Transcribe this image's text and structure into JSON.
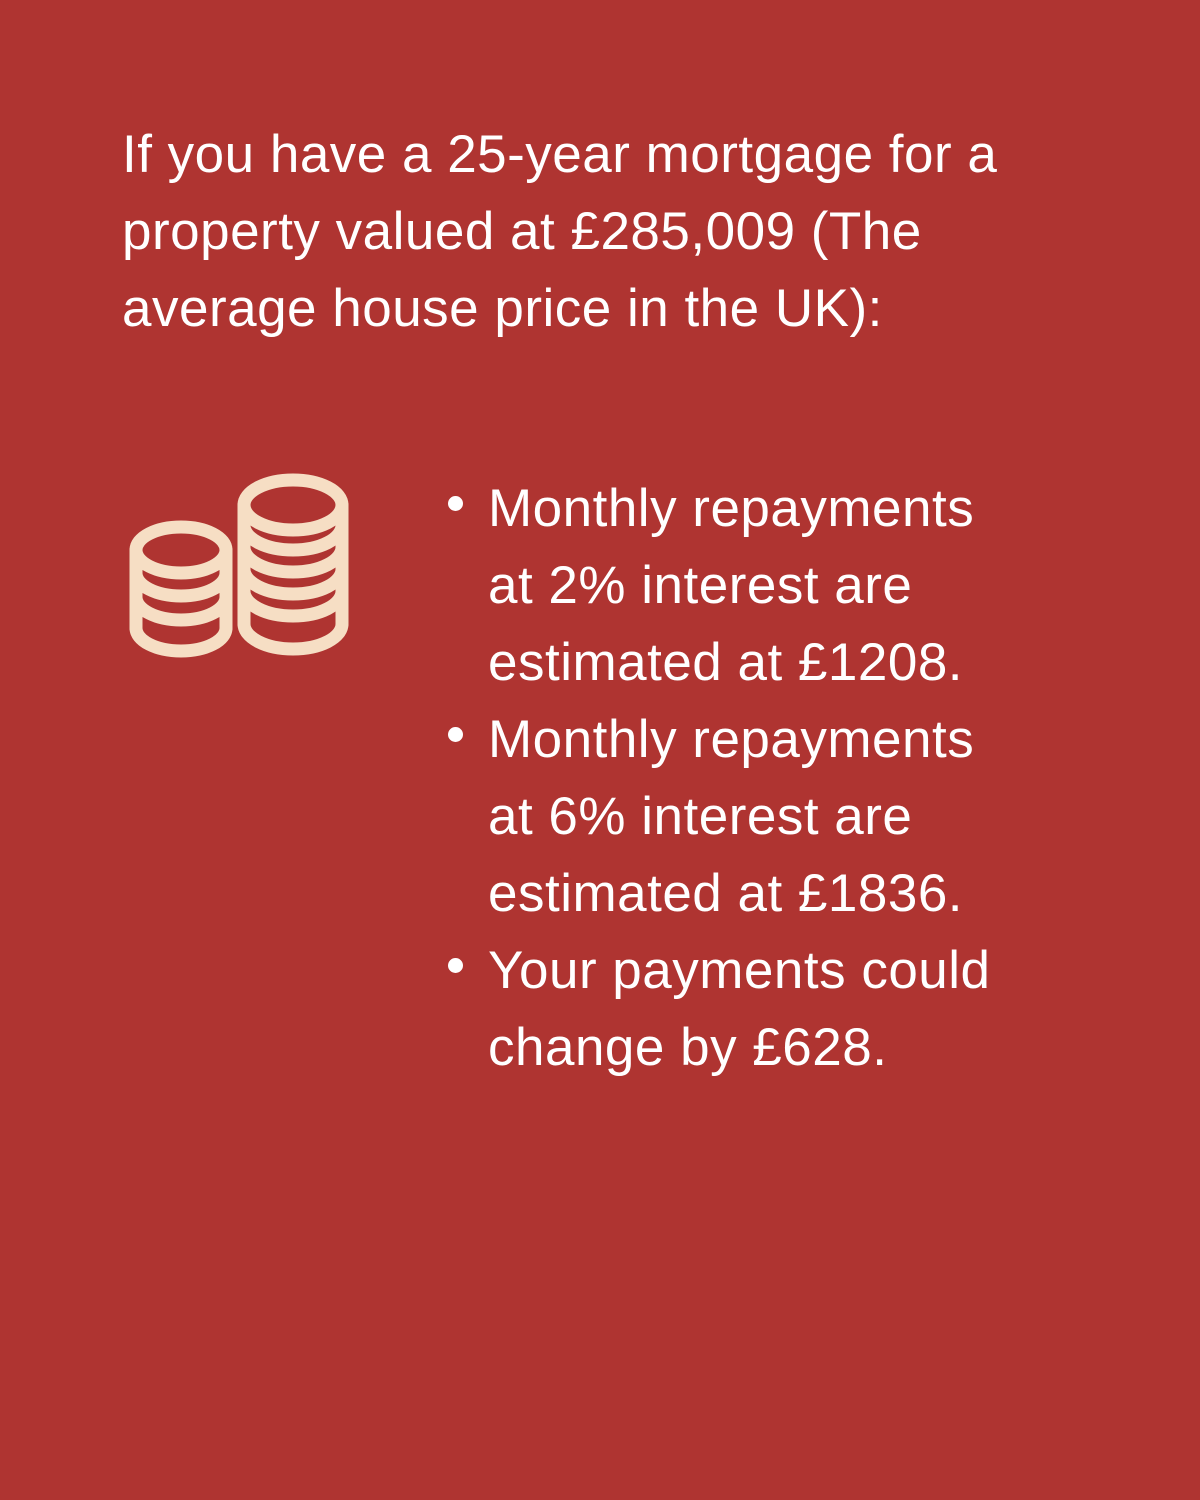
{
  "page": {
    "background_color": "#AF3431",
    "text_color": "#FFFFFF",
    "icon_color": "#F6DEC4"
  },
  "heading": {
    "text": "If you have a 25-year mortgage for a property valued at £285,009 (The average house price in the UK):",
    "lines": [
      "If you have a 25-year mortgage for a",
      "property valued at £285,009 (The",
      "average house price in the UK):"
    ]
  },
  "icon": {
    "name": "coin-stacks-icon",
    "color": "#F6DEC4"
  },
  "bullets": [
    {
      "text": "Monthly repayments at 2% interest are estimated at £1208.",
      "lines": [
        "Monthly repayments",
        "at 2% interest are",
        "estimated at £1208."
      ]
    },
    {
      "text": "Monthly repayments at 6% interest are estimated at £1836.",
      "lines": [
        "Monthly repayments",
        "at 6% interest are",
        "estimated at £1836."
      ]
    },
    {
      "text": "Your payments could change by £628.",
      "lines": [
        "Your payments could",
        "change by £628."
      ]
    }
  ]
}
